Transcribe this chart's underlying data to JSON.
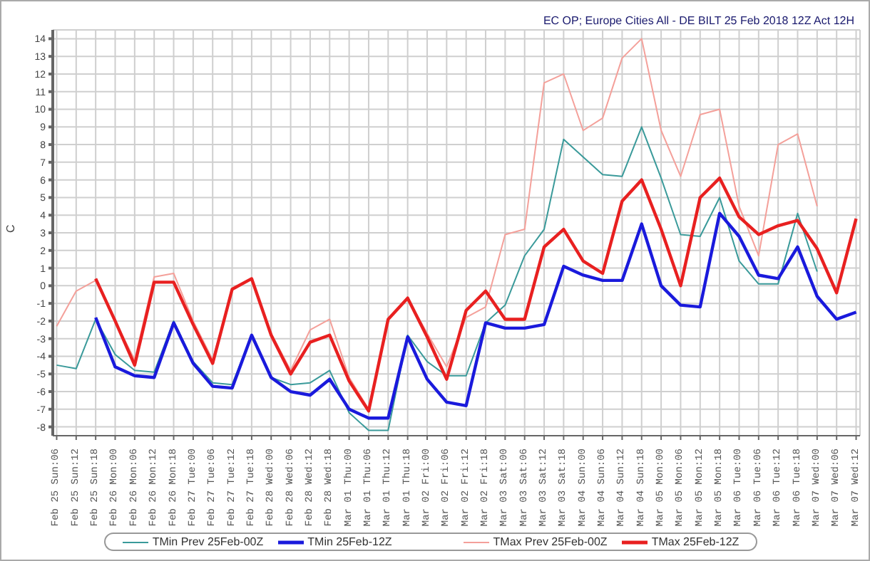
{
  "chart_data": {
    "type": "line",
    "title": "EC OP; Europe Cities All - DE BILT 25 Feb 2018 12Z Act 12H",
    "ylabel": "C",
    "categories": [
      "Feb 25 Sun:06",
      "Feb 25 Sun:12",
      "Feb 25 Sun:18",
      "Feb 26 Mon:00",
      "Feb 26 Mon:06",
      "Feb 26 Mon:12",
      "Feb 26 Mon:18",
      "Feb 27 Tue:00",
      "Feb 27 Tue:06",
      "Feb 27 Tue:12",
      "Feb 27 Tue:18",
      "Feb 28 Wed:00",
      "Feb 28 Wed:06",
      "Feb 28 Wed:12",
      "Feb 28 Wed:18",
      "Mar 01 Thu:00",
      "Mar 01 Thu:06",
      "Mar 01 Thu:12",
      "Mar 01 Thu:18",
      "Mar 02 Fri:00",
      "Mar 02 Fri:06",
      "Mar 02 Fri:12",
      "Mar 02 Fri:18",
      "Mar 03 Sat:00",
      "Mar 03 Sat:06",
      "Mar 03 Sat:12",
      "Mar 03 Sat:18",
      "Mar 04 Sun:00",
      "Mar 04 Sun:06",
      "Mar 04 Sun:12",
      "Mar 04 Sun:18",
      "Mar 05 Mon:00",
      "Mar 05 Mon:06",
      "Mar 05 Mon:12",
      "Mar 05 Mon:18",
      "Mar 06 Tue:00",
      "Mar 06 Tue:06",
      "Mar 06 Tue:12",
      "Mar 06 Tue:18",
      "Mar 07 Wed:00",
      "Mar 07 Wed:06",
      "Mar 07 Wed:12"
    ],
    "series": [
      {
        "name": "TMin Prev 25Feb-00Z",
        "color": "#3a9a9a",
        "values": [
          -4.5,
          -4.7,
          -1.9,
          -3.9,
          -4.8,
          -4.9,
          -2.0,
          -4.3,
          -5.5,
          -5.6,
          -2.8,
          -5.2,
          -5.6,
          -5.5,
          -4.8,
          -7.2,
          -8.2,
          -8.2,
          -2.8,
          -4.3,
          -5.1,
          -5.1,
          -2.1,
          -1.1,
          1.7,
          3.2,
          8.3,
          7.3,
          6.3,
          6.2,
          9.0,
          6.1,
          2.9,
          2.8,
          5.0,
          1.4,
          0.1,
          0.1,
          4.1,
          0.8,
          null,
          null
        ]
      },
      {
        "name": "TMin 25Feb-12Z",
        "color": "#1a1adc",
        "values": [
          null,
          null,
          -1.8,
          -4.6,
          -5.1,
          -5.2,
          -2.1,
          -4.4,
          -5.7,
          -5.8,
          -2.8,
          -5.2,
          -6.0,
          -6.2,
          -5.3,
          -7.0,
          -7.5,
          -7.5,
          -2.9,
          -5.3,
          -6.6,
          -6.8,
          -2.1,
          -2.4,
          -2.4,
          -2.2,
          1.1,
          0.6,
          0.3,
          0.3,
          3.5,
          0.0,
          -1.1,
          -1.2,
          4.1,
          2.8,
          0.6,
          0.4,
          2.2,
          -0.6,
          -1.9,
          -1.5
        ]
      },
      {
        "name": "TMax Prev 25Feb-00Z",
        "color": "#f4a09a",
        "values": [
          -2.3,
          -0.3,
          0.3,
          -2.0,
          -4.2,
          0.5,
          0.7,
          -2.0,
          -4.2,
          -0.2,
          0.4,
          -2.7,
          -4.8,
          -2.5,
          -1.9,
          -5.2,
          -7.0,
          -1.9,
          -0.7,
          -2.7,
          -4.6,
          -1.8,
          -1.2,
          2.9,
          3.2,
          11.5,
          12.0,
          8.8,
          9.5,
          12.9,
          14.0,
          8.8,
          6.2,
          9.7,
          10.0,
          4.5,
          1.7,
          8.0,
          8.6,
          4.5,
          null,
          null
        ]
      },
      {
        "name": "TMax 25Feb-12Z",
        "color": "#e82020",
        "values": [
          null,
          null,
          0.4,
          -2.0,
          -4.5,
          0.2,
          0.2,
          -2.2,
          -4.4,
          -0.2,
          0.4,
          -2.8,
          -5.0,
          -3.2,
          -2.8,
          -5.4,
          -7.1,
          -1.9,
          -0.7,
          -2.9,
          -5.3,
          -1.4,
          -0.3,
          -1.9,
          -1.9,
          2.2,
          3.2,
          1.4,
          0.7,
          4.8,
          6.0,
          3.2,
          0.0,
          5.0,
          6.1,
          3.9,
          2.9,
          3.4,
          3.7,
          2.1,
          -0.4,
          3.8
        ]
      }
    ],
    "ylim": [
      -8.5,
      14.5
    ],
    "yticks": [
      -8,
      -7,
      -6,
      -5,
      -4,
      -3,
      -2,
      -1,
      0,
      1,
      2,
      3,
      4,
      5,
      6,
      7,
      8,
      9,
      10,
      11,
      12,
      13,
      14
    ],
    "grid": true,
    "legend": "bottom",
    "marker": "none",
    "line_style": "solid"
  }
}
